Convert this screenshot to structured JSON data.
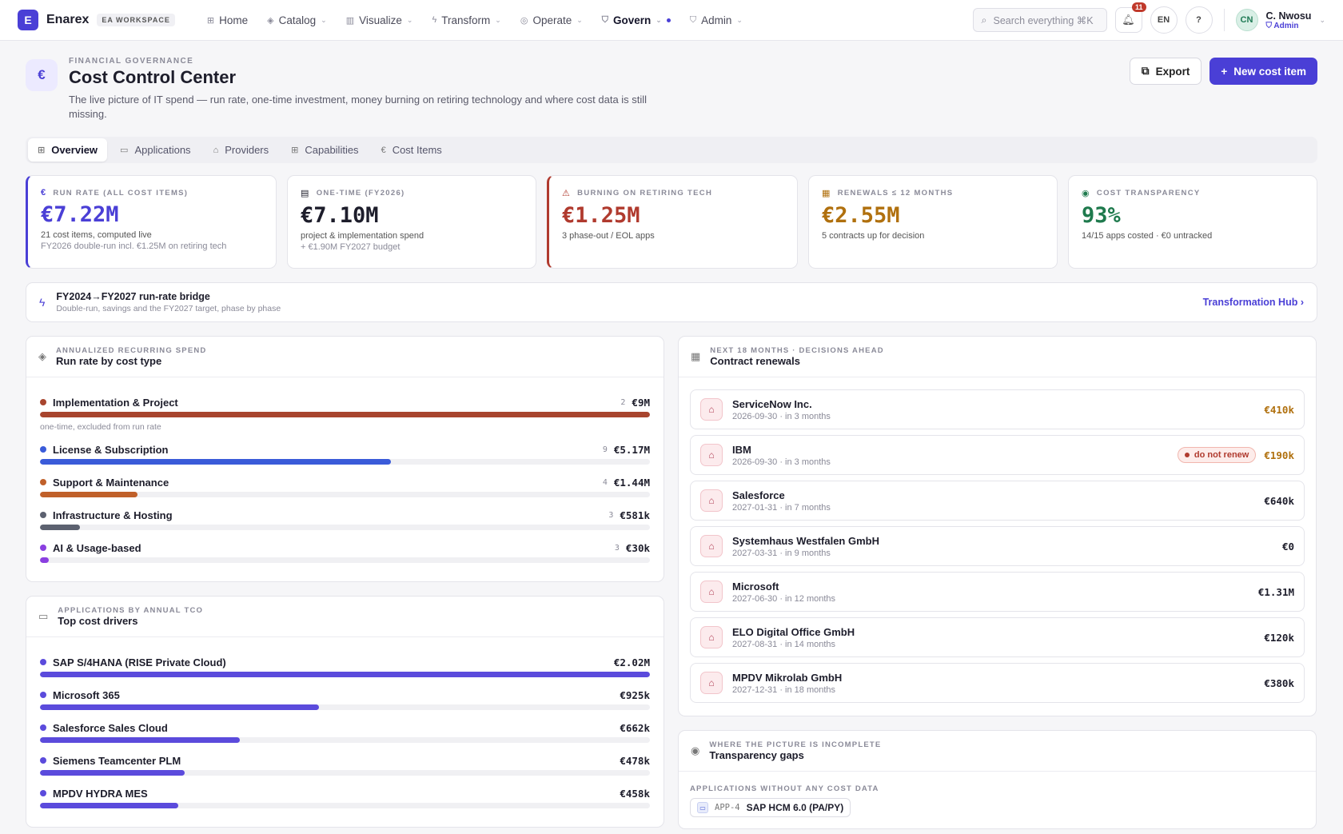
{
  "app": {
    "logo_letter": "E",
    "name": "Enarex",
    "workspace_badge": "EA WORKSPACE"
  },
  "nav": [
    {
      "label": "Home",
      "icon": "grid-icon",
      "glyph": "⊞",
      "has_menu": false,
      "active": false
    },
    {
      "label": "Catalog",
      "icon": "layers-icon",
      "glyph": "◈",
      "has_menu": true,
      "active": false
    },
    {
      "label": "Visualize",
      "icon": "book-icon",
      "glyph": "▥",
      "has_menu": true,
      "active": false
    },
    {
      "label": "Transform",
      "icon": "bolt-icon",
      "glyph": "ϟ",
      "has_menu": true,
      "active": false
    },
    {
      "label": "Operate",
      "icon": "database-icon",
      "glyph": "◎",
      "has_menu": true,
      "active": false
    },
    {
      "label": "Govern",
      "icon": "shield-icon",
      "glyph": "⛉",
      "has_menu": true,
      "active": true
    },
    {
      "label": "Admin",
      "icon": "shield-check-icon",
      "glyph": "⛉",
      "has_menu": true,
      "active": false
    }
  ],
  "search": {
    "placeholder": "Search everything ⌘K"
  },
  "notifications": {
    "count": "11"
  },
  "language": "EN",
  "user": {
    "initials": "CN",
    "name": "C. Nwosu",
    "role": "Admin"
  },
  "header": {
    "icon": "€",
    "eyebrow": "FINANCIAL GOVERNANCE",
    "title": "Cost Control Center",
    "description": "The live picture of IT spend — run rate, one-time investment, money burning on retiring technology and where cost data is still missing.",
    "export_label": "Export",
    "new_label": "New cost item"
  },
  "tabs": [
    {
      "label": "Overview",
      "icon": "grid-icon",
      "glyph": "⊞",
      "active": true
    },
    {
      "label": "Applications",
      "icon": "window-icon",
      "glyph": "▭",
      "active": false
    },
    {
      "label": "Providers",
      "icon": "building-icon",
      "glyph": "⌂",
      "active": false
    },
    {
      "label": "Capabilities",
      "icon": "grid-icon",
      "glyph": "⊞",
      "active": false
    },
    {
      "label": "Cost Items",
      "icon": "euro-icon",
      "glyph": "€",
      "active": false
    }
  ],
  "kpis": [
    {
      "label": "RUN RATE (ALL COST ITEMS)",
      "icon": "euro-icon",
      "glyph": "€",
      "value": "€7.22M",
      "sub": "21 cost items, computed live",
      "sub2": "FY2026 double-run incl. €1.25M on retiring tech",
      "color": "#4a3fd6",
      "accent": "blue"
    },
    {
      "label": "ONE-TIME (FY2026)",
      "icon": "receipt-icon",
      "glyph": "▤",
      "value": "€7.10M",
      "sub": "project & implementation spend",
      "sub2": "+ €1.90M FY2027 budget",
      "color": "#1d1d2b",
      "accent": ""
    },
    {
      "label": "BURNING ON RETIRING TECH",
      "icon": "warning-icon",
      "glyph": "⚠",
      "value": "€1.25M",
      "sub": "3 phase-out / EOL apps",
      "sub2": "",
      "color": "#b03a2e",
      "accent": "red"
    },
    {
      "label": "RENEWALS ≤ 12 MONTHS",
      "icon": "calendar-icon",
      "glyph": "▦",
      "value": "€2.55M",
      "sub": "5 contracts up for decision",
      "sub2": "",
      "color": "#b0700e",
      "accent": ""
    },
    {
      "label": "COST TRANSPARENCY",
      "icon": "eye-icon",
      "glyph": "◉",
      "value": "93%",
      "sub": "14/15 apps costed · €0 untracked",
      "sub2": "",
      "color": "#1f7a4d",
      "accent": ""
    }
  ],
  "bridge": {
    "title": "FY2024→FY2027 run-rate bridge",
    "subtitle": "Double-run, savings and the FY2027 target, phase by phase",
    "link": "Transformation Hub"
  },
  "run_rate": {
    "eyebrow": "ANNUALIZED RECURRING SPEND",
    "title": "Run rate by cost type",
    "rows": [
      {
        "name": "Implementation & Project",
        "count": "2",
        "value": "€9M",
        "fill": 1.0,
        "color": "#a8452e",
        "note": "one-time, excluded from run rate"
      },
      {
        "name": "License & Subscription",
        "count": "9",
        "value": "€5.17M",
        "fill": 0.575,
        "color": "#3a5bd9",
        "note": ""
      },
      {
        "name": "Support & Maintenance",
        "count": "4",
        "value": "€1.44M",
        "fill": 0.16,
        "color": "#c0602a",
        "note": ""
      },
      {
        "name": "Infrastructure & Hosting",
        "count": "3",
        "value": "€581k",
        "fill": 0.065,
        "color": "#5c6170",
        "note": ""
      },
      {
        "name": "AI & Usage-based",
        "count": "3",
        "value": "€30k",
        "fill": 0.015,
        "color": "#8a3fe0",
        "note": ""
      }
    ]
  },
  "top_drivers": {
    "eyebrow": "APPLICATIONS BY ANNUAL TCO",
    "title": "Top cost drivers",
    "rows": [
      {
        "name": "SAP S/4HANA (RISE Private Cloud)",
        "value": "€2.02M",
        "fill": 1.0
      },
      {
        "name": "Microsoft 365",
        "value": "€925k",
        "fill": 0.458
      },
      {
        "name": "Salesforce Sales Cloud",
        "value": "€662k",
        "fill": 0.328
      },
      {
        "name": "Siemens Teamcenter PLM",
        "value": "€478k",
        "fill": 0.237
      },
      {
        "name": "MPDV HYDRA MES",
        "value": "€458k",
        "fill": 0.227
      }
    ]
  },
  "renewals": {
    "eyebrow": "NEXT 18 MONTHS · DECISIONS AHEAD",
    "title": "Contract renewals",
    "items": [
      {
        "name": "ServiceNow Inc.",
        "date": "2026-09-30 · in 3 months",
        "amount": "€410k",
        "color": "#b0700e",
        "flag": ""
      },
      {
        "name": "IBM",
        "date": "2026-09-30 · in 3 months",
        "amount": "€190k",
        "color": "#b0700e",
        "flag": "do not renew"
      },
      {
        "name": "Salesforce",
        "date": "2027-01-31 · in 7 months",
        "amount": "€640k",
        "color": "#1d1d2b",
        "flag": ""
      },
      {
        "name": "Systemhaus Westfalen GmbH",
        "date": "2027-03-31 · in 9 months",
        "amount": "€0",
        "color": "#1d1d2b",
        "flag": ""
      },
      {
        "name": "Microsoft",
        "date": "2027-06-30 · in 12 months",
        "amount": "€1.31M",
        "color": "#1d1d2b",
        "flag": ""
      },
      {
        "name": "ELO Digital Office GmbH",
        "date": "2027-08-31 · in 14 months",
        "amount": "€120k",
        "color": "#1d1d2b",
        "flag": ""
      },
      {
        "name": "MPDV Mikrolab GmbH",
        "date": "2027-12-31 · in 18 months",
        "amount": "€380k",
        "color": "#1d1d2b",
        "flag": ""
      }
    ]
  },
  "gaps": {
    "eyebrow": "WHERE THE PICTURE IS INCOMPLETE",
    "title": "Transparency gaps",
    "section_label": "APPLICATIONS WITHOUT ANY COST DATA",
    "items": [
      {
        "id": "APP-4",
        "name": "SAP HCM 6.0 (PA/PY)"
      }
    ]
  },
  "colors": {
    "accent": "#4a3fd6",
    "driver_bar": "#5b4bdc"
  }
}
